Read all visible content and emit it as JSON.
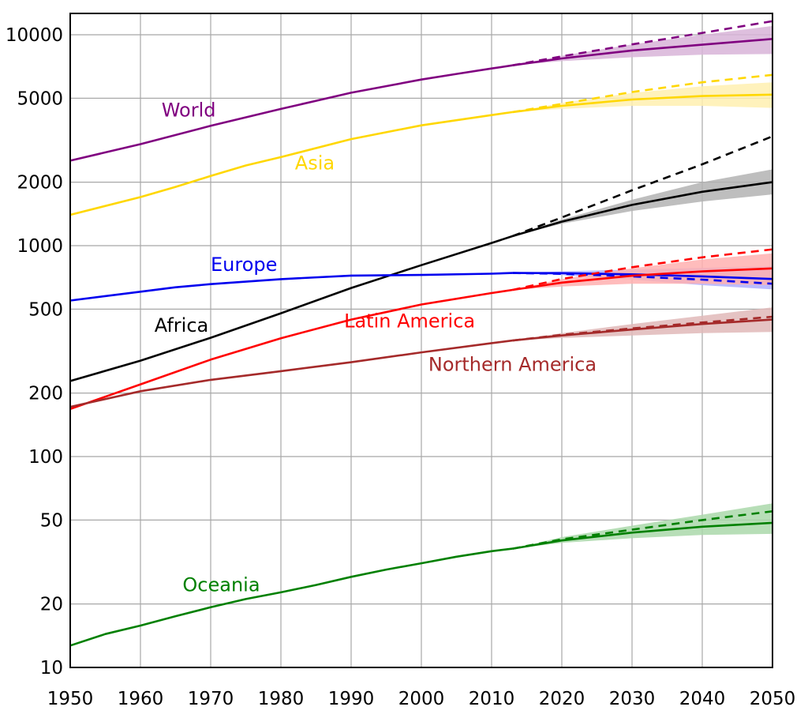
{
  "chart_data": {
    "type": "line",
    "title": "",
    "xlabel": "",
    "ylabel": "",
    "yscale": "log",
    "xlim": [
      1950,
      2050
    ],
    "ylim": [
      10,
      12000
    ],
    "grid": true,
    "legend": "inline labels",
    "x_ticks": [
      "1950",
      "1960",
      "1970",
      "1980",
      "1990",
      "2000",
      "2010",
      "2020",
      "2030",
      "2040",
      "2050"
    ],
    "y_ticks": [
      "10",
      "20",
      "50",
      "100",
      "200",
      "500",
      "1000",
      "2000",
      "5000",
      "10000"
    ],
    "projection_start": 2013,
    "series": [
      {
        "name": "World",
        "color": "#800080",
        "band_color": "#d8b4d8",
        "label_pos": [
          1963,
          4100
        ],
        "historical": {
          "x": [
            1950,
            1960,
            1970,
            1980,
            1990,
            2000,
            2005,
            2010,
            2013
          ],
          "y": [
            2530,
            3030,
            3700,
            4450,
            5310,
            6130,
            6520,
            6920,
            7160
          ]
        },
        "medium": {
          "x": [
            2013,
            2020,
            2030,
            2040,
            2050
          ],
          "y": [
            7160,
            7720,
            8420,
            8970,
            9550
          ]
        },
        "low": {
          "x": [
            2013,
            2020,
            2030,
            2040,
            2050
          ],
          "y": [
            7160,
            7500,
            7820,
            8050,
            8100
          ]
        },
        "high": {
          "x": [
            2013,
            2020,
            2030,
            2040,
            2050
          ],
          "y": [
            7160,
            7950,
            9000,
            10000,
            11000
          ]
        },
        "constant": {
          "x": [
            2013,
            2020,
            2030,
            2040,
            2050
          ],
          "y": [
            7160,
            7900,
            9000,
            10200,
            11600
          ]
        }
      },
      {
        "name": "Asia",
        "color": "#ffd700",
        "band_color": "#fff0b0",
        "label_pos": [
          1982,
          2300
        ],
        "historical": {
          "x": [
            1950,
            1960,
            1965,
            1970,
            1975,
            1980,
            1990,
            2000,
            2010,
            2013
          ],
          "y": [
            1400,
            1700,
            1900,
            2140,
            2400,
            2630,
            3200,
            3720,
            4160,
            4300
          ]
        },
        "medium": {
          "x": [
            2013,
            2020,
            2030,
            2040,
            2050
          ],
          "y": [
            4300,
            4600,
            4930,
            5120,
            5200
          ]
        },
        "low": {
          "x": [
            2013,
            2020,
            2030,
            2040,
            2050
          ],
          "y": [
            4300,
            4450,
            4600,
            4600,
            4500
          ]
        },
        "high": {
          "x": [
            2013,
            2020,
            2030,
            2040,
            2050
          ],
          "y": [
            4300,
            4750,
            5300,
            5700,
            5950
          ]
        },
        "constant": {
          "x": [
            2013,
            2020,
            2030,
            2040,
            2050
          ],
          "y": [
            4300,
            4700,
            5350,
            5950,
            6450
          ]
        }
      },
      {
        "name": "Africa",
        "color": "#000000",
        "band_color": "#b3b3b3",
        "label_pos": [
          1962,
          390
        ],
        "historical": {
          "x": [
            1950,
            1960,
            1970,
            1980,
            1990,
            2000,
            2010,
            2013
          ],
          "y": [
            228,
            285,
            366,
            478,
            630,
            808,
            1030,
            1110
          ]
        },
        "medium": {
          "x": [
            2013,
            2020,
            2030,
            2040,
            2050
          ],
          "y": [
            1110,
            1300,
            1560,
            1800,
            2000
          ]
        },
        "low": {
          "x": [
            2013,
            2020,
            2030,
            2040,
            2050
          ],
          "y": [
            1110,
            1270,
            1460,
            1620,
            1750
          ]
        },
        "high": {
          "x": [
            2013,
            2020,
            2030,
            2040,
            2050
          ],
          "y": [
            1110,
            1330,
            1650,
            2000,
            2300
          ]
        },
        "constant": {
          "x": [
            2013,
            2020,
            2030,
            2040,
            2050
          ],
          "y": [
            1110,
            1360,
            1830,
            2430,
            3300
          ]
        }
      },
      {
        "name": "Europe",
        "color": "#0000ee",
        "band_color": "#b0b0ff",
        "label_pos": [
          1970,
          760
        ],
        "historical": {
          "x": [
            1950,
            1960,
            1965,
            1970,
            1980,
            1990,
            2000,
            2010,
            2013
          ],
          "y": [
            549,
            605,
            635,
            657,
            694,
            721,
            726,
            736,
            742
          ]
        },
        "medium": {
          "x": [
            2013,
            2020,
            2030,
            2040,
            2050
          ],
          "y": [
            742,
            741,
            731,
            715,
            695
          ]
        },
        "low": {
          "x": [
            2013,
            2020,
            2030,
            2040,
            2050
          ],
          "y": [
            742,
            725,
            690,
            650,
            620
          ]
        },
        "high": {
          "x": [
            2013,
            2020,
            2030,
            2040,
            2050
          ],
          "y": [
            742,
            755,
            770,
            785,
            800
          ]
        },
        "constant": {
          "x": [
            2013,
            2020,
            2030,
            2040,
            2050
          ],
          "y": [
            742,
            735,
            715,
            690,
            660
          ]
        }
      },
      {
        "name": "Latin America",
        "color": "#ff0000",
        "band_color": "#ffb0b0",
        "label_pos": [
          1989,
          410
        ],
        "historical": {
          "x": [
            1950,
            1960,
            1970,
            1980,
            1990,
            2000,
            2010,
            2013
          ],
          "y": [
            168,
            220,
            288,
            364,
            446,
            526,
            596,
            617
          ]
        },
        "medium": {
          "x": [
            2013,
            2020,
            2030,
            2040,
            2050
          ],
          "y": [
            617,
            668,
            720,
            755,
            780
          ]
        },
        "low": {
          "x": [
            2013,
            2020,
            2030,
            2040,
            2050
          ],
          "y": [
            617,
            640,
            660,
            660,
            650
          ]
        },
        "high": {
          "x": [
            2013,
            2020,
            2030,
            2040,
            2050
          ],
          "y": [
            617,
            695,
            780,
            860,
            920
          ]
        },
        "constant": {
          "x": [
            2013,
            2020,
            2030,
            2040,
            2050
          ],
          "y": [
            617,
            695,
            790,
            880,
            960
          ]
        }
      },
      {
        "name": "Northern America",
        "color": "#a52a2a",
        "band_color": "#e0b8b8",
        "label_pos": [
          2001,
          255
        ],
        "historical": {
          "x": [
            1950,
            1960,
            1970,
            1980,
            1990,
            2000,
            2010,
            2013
          ],
          "y": [
            172,
            204,
            231,
            254,
            280,
            312,
            345,
            355
          ]
        },
        "medium": {
          "x": [
            2013,
            2020,
            2030,
            2040,
            2050
          ],
          "y": [
            355,
            375,
            400,
            425,
            446
          ]
        },
        "low": {
          "x": [
            2013,
            2020,
            2030,
            2040,
            2050
          ],
          "y": [
            355,
            365,
            375,
            385,
            390
          ]
        },
        "high": {
          "x": [
            2013,
            2020,
            2030,
            2040,
            2050
          ],
          "y": [
            355,
            385,
            425,
            465,
            510
          ]
        },
        "constant": {
          "x": [
            2013,
            2020,
            2030,
            2040,
            2050
          ],
          "y": [
            355,
            378,
            405,
            432,
            460
          ]
        }
      },
      {
        "name": "Oceania",
        "color": "#008000",
        "band_color": "#aad8aa",
        "label_pos": [
          1966,
          23
        ],
        "historical": {
          "x": [
            1950,
            1955,
            1960,
            1965,
            1970,
            1975,
            1980,
            1985,
            1990,
            1995,
            2000,
            2005,
            2010,
            2013
          ],
          "y": [
            12.7,
            14.4,
            15.8,
            17.5,
            19.3,
            21.1,
            22.7,
            24.6,
            26.9,
            29.1,
            31.2,
            33.5,
            35.6,
            36.6
          ]
        },
        "medium": {
          "x": [
            2013,
            2020,
            2030,
            2040,
            2050
          ],
          "y": [
            36.6,
            40.0,
            43.6,
            46.5,
            48.5
          ]
        },
        "low": {
          "x": [
            2013,
            2020,
            2030,
            2040,
            2050
          ],
          "y": [
            36.6,
            39.0,
            41.0,
            42.5,
            43.0
          ]
        },
        "high": {
          "x": [
            2013,
            2020,
            2030,
            2040,
            2050
          ],
          "y": [
            36.6,
            41.5,
            47.0,
            53.0,
            60.0
          ]
        },
        "constant": {
          "x": [
            2013,
            2020,
            2030,
            2040,
            2050
          ],
          "y": [
            36.6,
            40.5,
            45.0,
            50.0,
            55.0
          ]
        }
      }
    ]
  }
}
